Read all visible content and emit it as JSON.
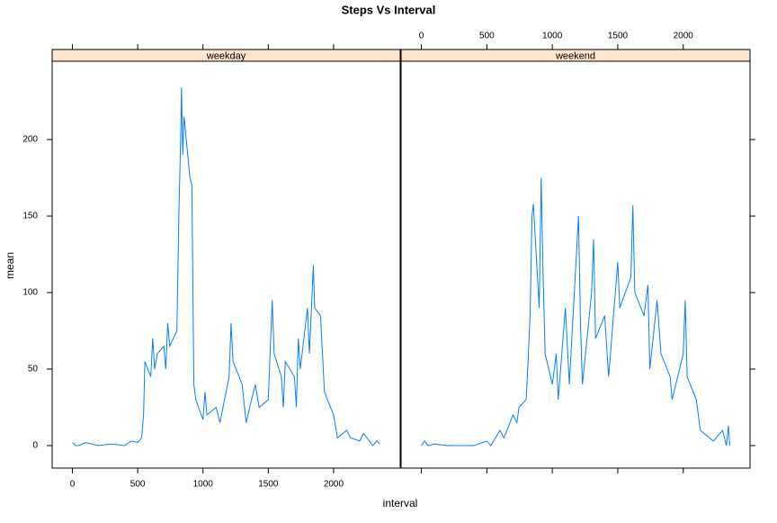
{
  "chart_data": {
    "type": "line",
    "title": "Steps Vs Interval",
    "x_label": "interval",
    "y_label": "mean",
    "xlim": [
      -155,
      2510
    ],
    "ylim": [
      -14.7,
      251.2
    ],
    "xticks": [
      0,
      500,
      1000,
      1500,
      2000
    ],
    "yticks": [
      0,
      50,
      100,
      150,
      200
    ],
    "strip_color": "#ffe5cc",
    "series": [
      {
        "name": "weekday",
        "color": "#0080ff",
        "x": [
          0,
          25,
          50,
          100,
          200,
          300,
          400,
          450,
          500,
          530,
          545,
          555,
          600,
          615,
          630,
          650,
          700,
          715,
          730,
          745,
          800,
          815,
          830,
          835,
          845,
          855,
          900,
          915,
          930,
          945,
          1000,
          1015,
          1030,
          1100,
          1130,
          1200,
          1215,
          1230,
          1300,
          1330,
          1400,
          1430,
          1500,
          1530,
          1545,
          1600,
          1615,
          1630,
          1700,
          1715,
          1730,
          1745,
          1800,
          1815,
          1845,
          1855,
          1900,
          1930,
          2000,
          2030,
          2100,
          2130,
          2200,
          2230,
          2300,
          2330,
          2355
        ],
        "values": [
          2,
          0,
          0,
          2,
          0,
          1,
          0,
          3,
          2,
          5,
          20,
          55,
          45,
          70,
          50,
          60,
          65,
          50,
          80,
          65,
          75,
          150,
          205,
          234,
          190,
          215,
          175,
          170,
          40,
          30,
          17,
          35,
          20,
          25,
          15,
          45,
          80,
          55,
          40,
          15,
          40,
          25,
          30,
          95,
          60,
          45,
          25,
          55,
          45,
          25,
          70,
          50,
          90,
          60,
          118,
          90,
          85,
          35,
          20,
          5,
          10,
          5,
          3,
          8,
          0,
          3,
          1
        ]
      },
      {
        "name": "weekend",
        "color": "#0080ff",
        "x": [
          0,
          25,
          50,
          100,
          200,
          300,
          400,
          500,
          530,
          545,
          600,
          630,
          700,
          730,
          745,
          800,
          815,
          830,
          845,
          855,
          900,
          915,
          930,
          945,
          1000,
          1030,
          1045,
          1100,
          1130,
          1200,
          1215,
          1230,
          1300,
          1315,
          1330,
          1400,
          1430,
          1500,
          1515,
          1600,
          1615,
          1630,
          1700,
          1730,
          1745,
          1800,
          1830,
          1900,
          1915,
          2000,
          2015,
          2030,
          2100,
          2130,
          2200,
          2230,
          2300,
          2330,
          2345,
          2355
        ],
        "values": [
          0,
          3,
          0,
          1,
          0,
          0,
          0,
          3,
          0,
          2,
          10,
          5,
          20,
          15,
          25,
          30,
          55,
          85,
          150,
          158,
          90,
          175,
          110,
          60,
          40,
          60,
          30,
          90,
          40,
          150,
          80,
          40,
          100,
          135,
          70,
          85,
          45,
          120,
          90,
          110,
          157,
          100,
          85,
          105,
          50,
          95,
          60,
          45,
          30,
          60,
          95,
          45,
          30,
          10,
          5,
          3,
          10,
          0,
          13,
          0
        ]
      }
    ]
  }
}
